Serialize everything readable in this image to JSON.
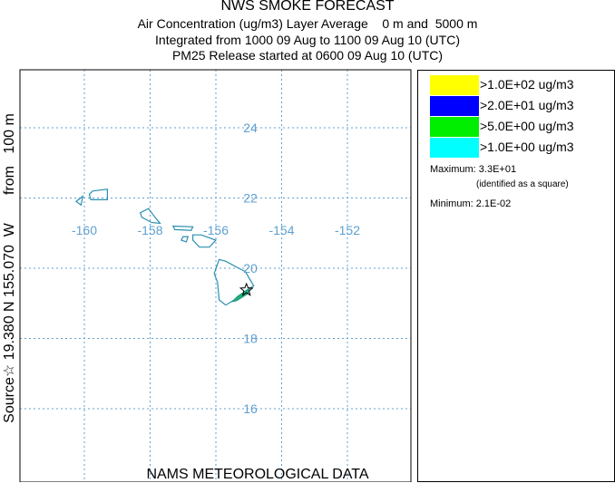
{
  "header": {
    "title": "NWS SMOKE FORECAST",
    "line1": "Air Concentration (ug/m3) Layer Average    0 m and  5000 m",
    "line2": "Integrated from 1000 09 Aug to 1100 09 Aug 10 (UTC)",
    "line3": "PM25 Release started at 0600 09 Aug 10 (UTC)"
  },
  "side_label": "Source☆ 19.380 N 155.070  W       from   100 m",
  "footer": "NAMS METEOROLOGICAL DATA",
  "legend": {
    "items": [
      {
        "label": ">1.0E+02 ug/m3",
        "color": "#ffff00"
      },
      {
        "label": ">2.0E+01 ug/m3",
        "color": "#0000ff"
      },
      {
        "label": ">5.0E+00 ug/m3",
        "color": "#00ee00"
      },
      {
        "label": ">1.0E+00 ug/m3",
        "color": "#00ffff"
      }
    ],
    "maximum": "Maximum: 3.3E+01",
    "max_note": "(identified as a square)",
    "minimum": "Minimum: 2.1E-02"
  },
  "chart_data": {
    "type": "map",
    "lon_ticks": [
      -160,
      -158,
      -156,
      -154,
      -152
    ],
    "lat_ticks": [
      24,
      22,
      20,
      18,
      16
    ],
    "lon_range": [
      -162,
      -150
    ],
    "lat_range": [
      14.5,
      25.5
    ],
    "grid": true,
    "grid_color": "#5fa0d0",
    "coast_color": "#2a8fb0",
    "source": {
      "lat": 19.38,
      "lon": -155.07
    },
    "plume_color": "#20b070"
  }
}
